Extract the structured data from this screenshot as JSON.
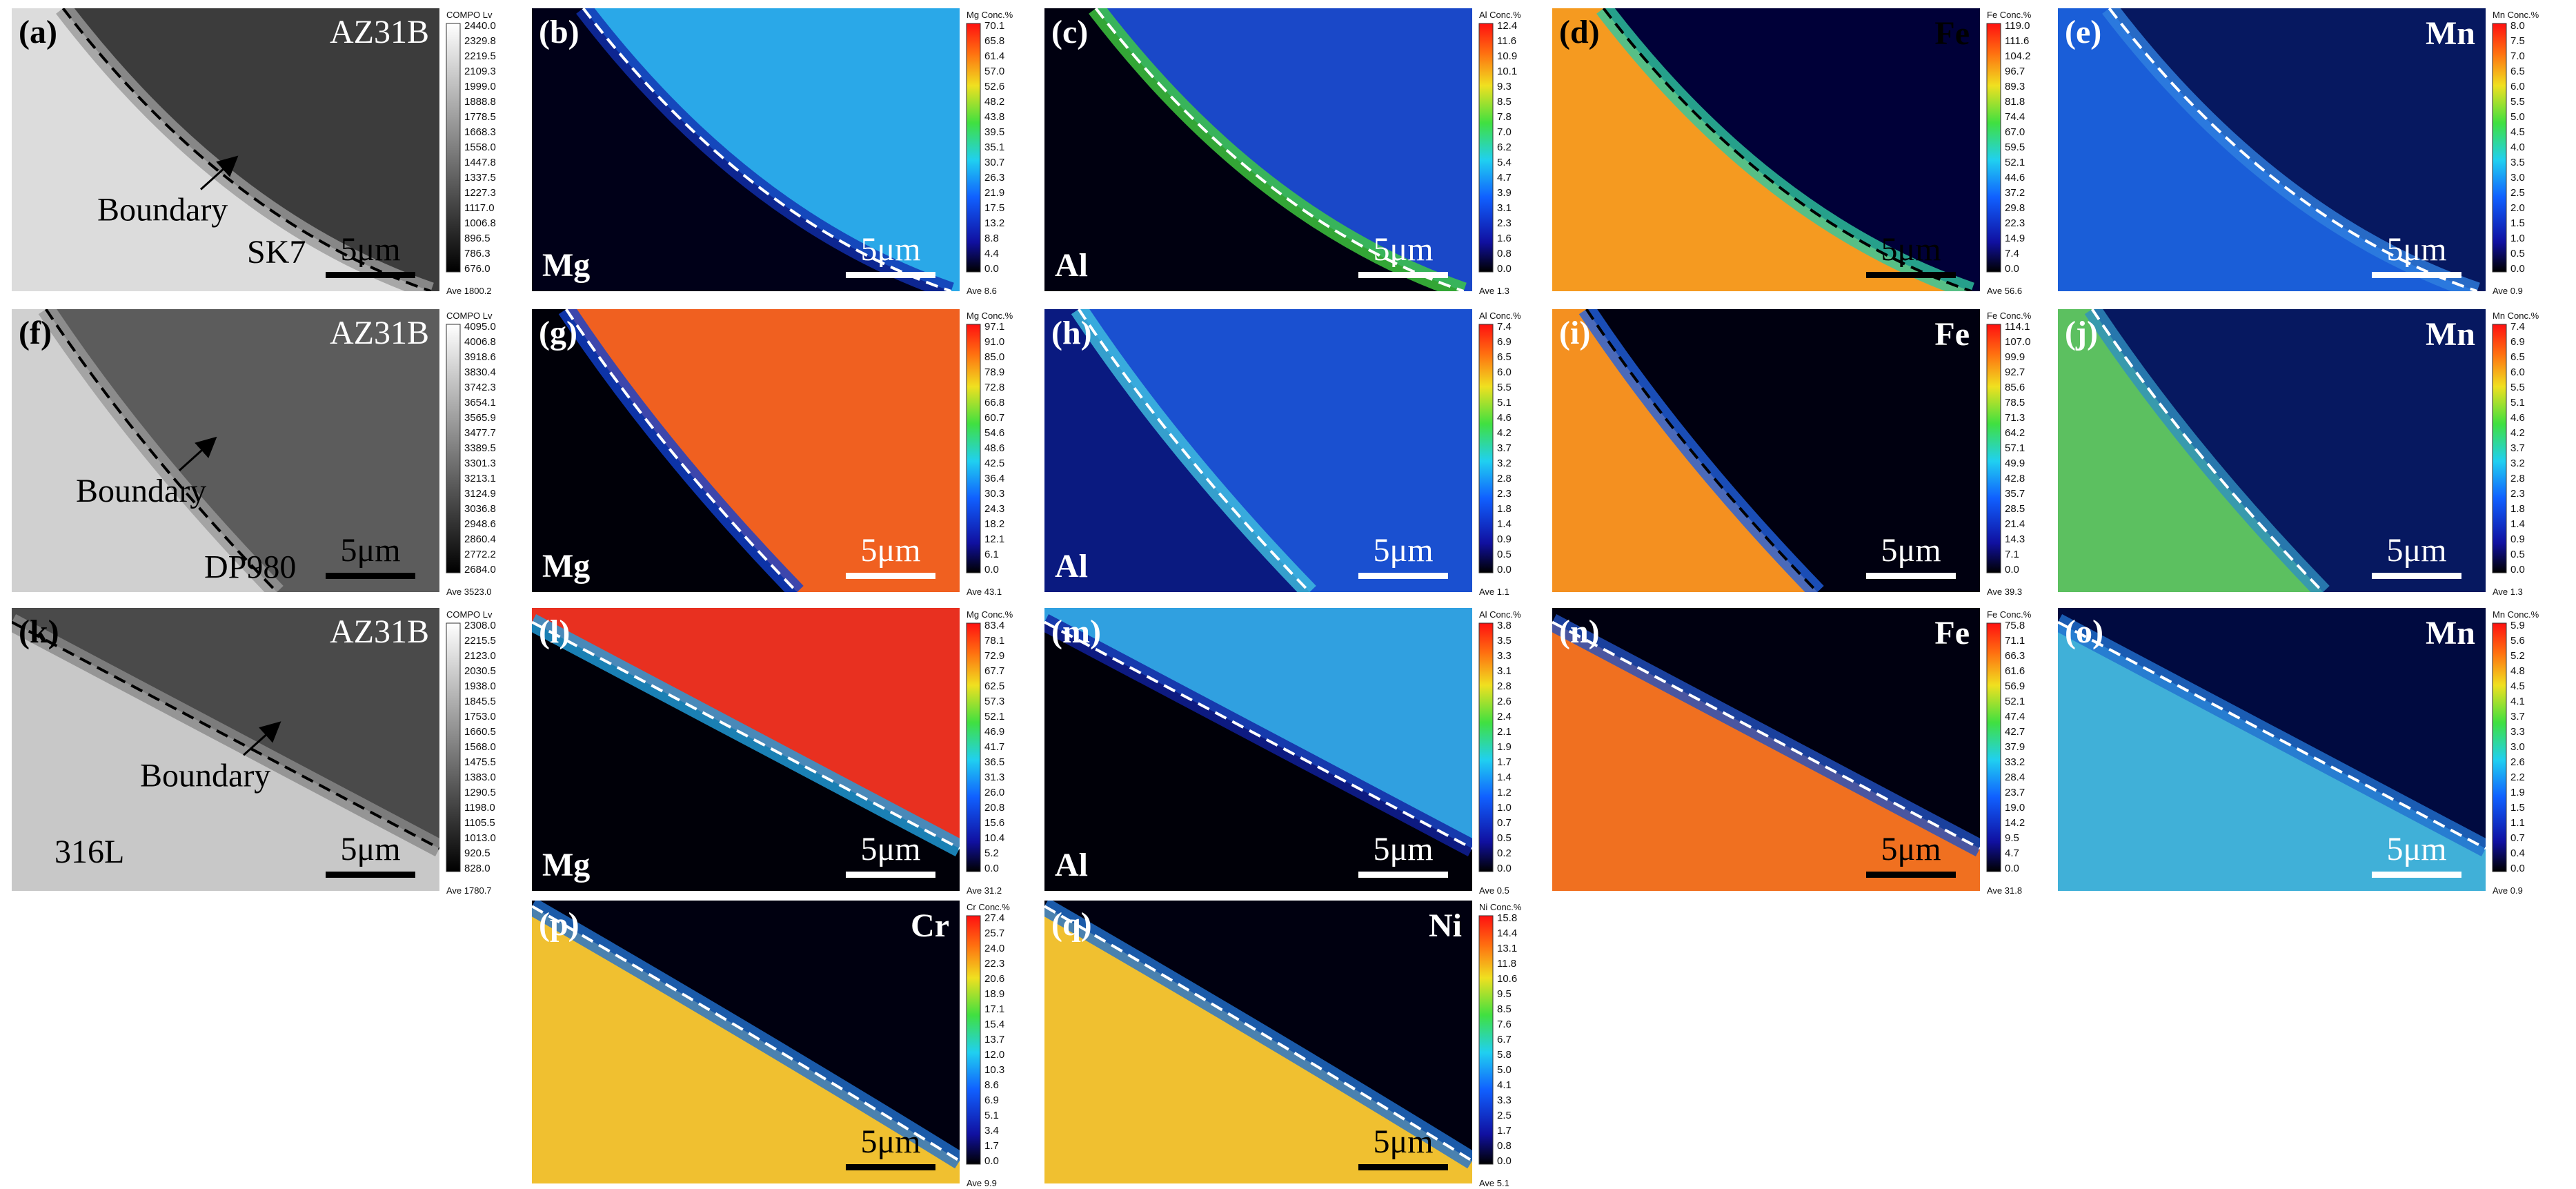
{
  "panels": [
    {
      "label": "(a)",
      "material": "AZ31B",
      "boundary": "Boundary",
      "sample": "SK7",
      "scale": "5μm",
      "colorbar": {
        "title": "COMPO Lv",
        "ticks": [
          "2440.0",
          "2329.8",
          "2219.5",
          "2109.3",
          "1999.0",
          "1888.8",
          "1778.5",
          "1668.3",
          "1558.0",
          "1447.8",
          "1337.5",
          "1227.3",
          "1117.0",
          "1006.8",
          "896.5",
          "786.3",
          "676.0"
        ],
        "ave": "Ave 1800.2"
      }
    },
    {
      "label": "(b)",
      "element": "Mg",
      "scale": "5μm",
      "colorbar": {
        "title": "Mg Conc.%",
        "ticks": [
          "70.1",
          "65.8",
          "61.4",
          "57.0",
          "52.6",
          "48.2",
          "43.8",
          "39.5",
          "35.1",
          "30.7",
          "26.3",
          "21.9",
          "17.5",
          "13.2",
          "8.8",
          "4.4",
          "0.0"
        ],
        "ave": "Ave 8.6"
      }
    },
    {
      "label": "(c)",
      "element": "Al",
      "scale": "5μm",
      "colorbar": {
        "title": "Al Conc.%",
        "ticks": [
          "12.4",
          "11.6",
          "10.9",
          "10.1",
          "9.3",
          "8.5",
          "7.8",
          "7.0",
          "6.2",
          "5.4",
          "4.7",
          "3.9",
          "3.1",
          "2.3",
          "1.6",
          "0.8",
          "0.0"
        ],
        "ave": "Ave 1.3"
      }
    },
    {
      "label": "(d)",
      "element": "Fe",
      "scale": "5μm",
      "colorbar": {
        "title": "Fe Conc.%",
        "ticks": [
          "119.0",
          "111.6",
          "104.2",
          "96.7",
          "89.3",
          "81.8",
          "74.4",
          "67.0",
          "59.5",
          "52.1",
          "44.6",
          "37.2",
          "29.8",
          "22.3",
          "14.9",
          "7.4",
          "0.0"
        ],
        "ave": "Ave 56.6"
      }
    },
    {
      "label": "(e)",
      "element": "Mn",
      "scale": "5μm",
      "colorbar": {
        "title": "Mn Conc.%",
        "ticks": [
          "8.0",
          "7.5",
          "7.0",
          "6.5",
          "6.0",
          "5.5",
          "5.0",
          "4.5",
          "4.0",
          "3.5",
          "3.0",
          "2.5",
          "2.0",
          "1.5",
          "1.0",
          "0.5",
          "0.0"
        ],
        "ave": "Ave 0.9"
      }
    },
    {
      "label": "(f)",
      "material": "AZ31B",
      "boundary": "Boundary",
      "sample": "DP980",
      "scale": "5μm",
      "colorbar": {
        "title": "COMPO Lv",
        "ticks": [
          "4095.0",
          "4006.8",
          "3918.6",
          "3830.4",
          "3742.3",
          "3654.1",
          "3565.9",
          "3477.7",
          "3389.5",
          "3301.3",
          "3213.1",
          "3124.9",
          "3036.8",
          "2948.6",
          "2860.4",
          "2772.2",
          "2684.0"
        ],
        "ave": "Ave 3523.0"
      }
    },
    {
      "label": "(g)",
      "element": "Mg",
      "scale": "5μm",
      "colorbar": {
        "title": "Mg Conc.%",
        "ticks": [
          "97.1",
          "91.0",
          "85.0",
          "78.9",
          "72.8",
          "66.8",
          "60.7",
          "54.6",
          "48.6",
          "42.5",
          "36.4",
          "30.3",
          "24.3",
          "18.2",
          "12.1",
          "6.1",
          "0.0"
        ],
        "ave": "Ave 43.1"
      }
    },
    {
      "label": "(h)",
      "element": "Al",
      "scale": "5μm",
      "colorbar": {
        "title": "Al Conc.%",
        "ticks": [
          "7.4",
          "6.9",
          "6.5",
          "6.0",
          "5.5",
          "5.1",
          "4.6",
          "4.2",
          "3.7",
          "3.2",
          "2.8",
          "2.3",
          "1.8",
          "1.4",
          "0.9",
          "0.5",
          "0.0"
        ],
        "ave": "Ave 1.1"
      }
    },
    {
      "label": "(i)",
      "element": "Fe",
      "scale": "5μm",
      "colorbar": {
        "title": "Fe Conc.%",
        "ticks": [
          "114.1",
          "107.0",
          "99.9",
          "92.7",
          "85.6",
          "78.5",
          "71.3",
          "64.2",
          "57.1",
          "49.9",
          "42.8",
          "35.7",
          "28.5",
          "21.4",
          "14.3",
          "7.1",
          "0.0"
        ],
        "ave": "Ave 39.3"
      }
    },
    {
      "label": "(j)",
      "element": "Mn",
      "scale": "5μm",
      "colorbar": {
        "title": "Mn Conc.%",
        "ticks": [
          "7.4",
          "6.9",
          "6.5",
          "6.0",
          "5.5",
          "5.1",
          "4.6",
          "4.2",
          "3.7",
          "3.2",
          "2.8",
          "2.3",
          "1.8",
          "1.4",
          "0.9",
          "0.5",
          "0.0"
        ],
        "ave": "Ave 1.3"
      }
    },
    {
      "label": "(k)",
      "material": "AZ31B",
      "boundary": "Boundary",
      "sample": "316L",
      "scale": "5μm",
      "colorbar": {
        "title": "COMPO Lv",
        "ticks": [
          "2308.0",
          "2215.5",
          "2123.0",
          "2030.5",
          "1938.0",
          "1845.5",
          "1753.0",
          "1660.5",
          "1568.0",
          "1475.5",
          "1383.0",
          "1290.5",
          "1198.0",
          "1105.5",
          "1013.0",
          "920.5",
          "828.0"
        ],
        "ave": "Ave 1780.7"
      }
    },
    {
      "label": "(l)",
      "element": "Mg",
      "scale": "5μm",
      "colorbar": {
        "title": "Mg Conc.%",
        "ticks": [
          "83.4",
          "78.1",
          "72.9",
          "67.7",
          "62.5",
          "57.3",
          "52.1",
          "46.9",
          "41.7",
          "36.5",
          "31.3",
          "26.0",
          "20.8",
          "15.6",
          "10.4",
          "5.2",
          "0.0"
        ],
        "ave": "Ave 31.2"
      }
    },
    {
      "label": "(m)",
      "element": "Al",
      "scale": "5μm",
      "colorbar": {
        "title": "Al Conc.%",
        "ticks": [
          "3.8",
          "3.5",
          "3.3",
          "3.1",
          "2.8",
          "2.6",
          "2.4",
          "2.1",
          "1.9",
          "1.7",
          "1.4",
          "1.2",
          "1.0",
          "0.7",
          "0.5",
          "0.2",
          "0.0"
        ],
        "ave": "Ave 0.5"
      }
    },
    {
      "label": "(n)",
      "element": "Fe",
      "scale": "5μm",
      "colorbar": {
        "title": "Fe Conc.%",
        "ticks": [
          "75.8",
          "71.1",
          "66.3",
          "61.6",
          "56.9",
          "52.1",
          "47.4",
          "42.7",
          "37.9",
          "33.2",
          "28.4",
          "23.7",
          "19.0",
          "14.2",
          "9.5",
          "4.7",
          "0.0"
        ],
        "ave": "Ave 31.8"
      }
    },
    {
      "label": "(o)",
      "element": "Mn",
      "scale": "5μm",
      "colorbar": {
        "title": "Mn Conc.%",
        "ticks": [
          "5.9",
          "5.6",
          "5.2",
          "4.8",
          "4.5",
          "4.1",
          "3.7",
          "3.3",
          "3.0",
          "2.6",
          "2.2",
          "1.9",
          "1.5",
          "1.1",
          "0.7",
          "0.4",
          "0.0"
        ],
        "ave": "Ave 0.9"
      }
    },
    {
      "label": "(p)",
      "element": "Cr",
      "scale": "5μm",
      "colorbar": {
        "title": "Cr Conc.%",
        "ticks": [
          "27.4",
          "25.7",
          "24.0",
          "22.3",
          "20.6",
          "18.9",
          "17.1",
          "15.4",
          "13.7",
          "12.0",
          "10.3",
          "8.6",
          "6.9",
          "5.1",
          "3.4",
          "1.7",
          "0.0"
        ],
        "ave": "Ave 9.9"
      }
    },
    {
      "label": "(q)",
      "element": "Ni",
      "scale": "5μm",
      "colorbar": {
        "title": "Ni Conc.%",
        "ticks": [
          "15.8",
          "14.4",
          "13.1",
          "11.8",
          "10.6",
          "9.5",
          "8.5",
          "7.6",
          "6.7",
          "5.8",
          "5.0",
          "4.1",
          "3.3",
          "2.5",
          "1.7",
          "0.8",
          "0.0"
        ],
        "ave": "Ave 5.1"
      }
    }
  ]
}
